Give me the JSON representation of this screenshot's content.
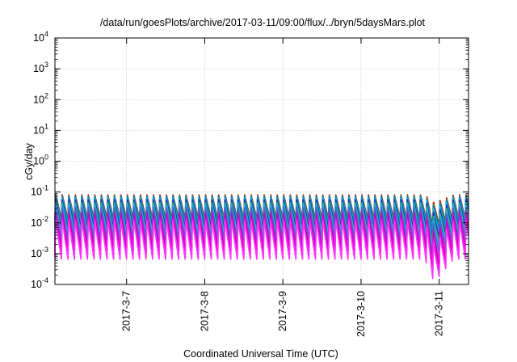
{
  "chart_data": {
    "type": "line",
    "title": "/data/run/goesPlots/archive/2017-03-11/09:00/flux/../bryn/5daysMars.plot",
    "xlabel": "Coordinated Universal Time (UTC)",
    "ylabel": "cGy/day",
    "yscale": "log",
    "ylim": [
      0.0001,
      10000
    ],
    "y_ticks": [
      {
        "value": 0.0001,
        "base": "10",
        "exp": "-4"
      },
      {
        "value": 0.001,
        "base": "10",
        "exp": "-3"
      },
      {
        "value": 0.01,
        "base": "10",
        "exp": "-2"
      },
      {
        "value": 0.1,
        "base": "10",
        "exp": "-1"
      },
      {
        "value": 1,
        "base": "10",
        "exp": "0"
      },
      {
        "value": 10,
        "base": "10",
        "exp": "1"
      },
      {
        "value": 100,
        "base": "10",
        "exp": "2"
      },
      {
        "value": 1000,
        "base": "10",
        "exp": "3"
      },
      {
        "value": 10000,
        "base": "10",
        "exp": "4"
      }
    ],
    "xlim": [
      "2017-03-06T02:00",
      "2017-03-11T09:00"
    ],
    "x_ticks": [
      {
        "value": "2017-03-07T00:00",
        "label": "2017-3-7"
      },
      {
        "value": "2017-03-08T00:00",
        "label": "2017-3-8"
      },
      {
        "value": "2017-03-09T00:00",
        "label": "2017-3-9"
      },
      {
        "value": "2017-03-10T00:00",
        "label": "2017-3-10"
      },
      {
        "value": "2017-03-11T00:00",
        "label": "2017-3-11"
      }
    ],
    "grid": true,
    "legend": "none",
    "pattern": {
      "period_hours": 2.0,
      "dip_time": "2017-03-10T22:30",
      "dip_depth_decades": 0.75
    },
    "series": [
      {
        "color": "#cc0000",
        "peak": 0.085,
        "trough": 0.0135
      },
      {
        "color": "#00aa55",
        "peak": 0.078,
        "trough": 0.0115
      },
      {
        "color": "#0077ff",
        "peak": 0.072,
        "trough": 0.0098
      },
      {
        "color": "#00ccdd",
        "peak": 0.066,
        "trough": 0.0082
      },
      {
        "color": "#2233bb",
        "peak": 0.06,
        "trough": 0.0068
      },
      {
        "color": "#22bb77",
        "peak": 0.048,
        "trough": 0.0046
      },
      {
        "color": "#33aaee",
        "peak": 0.04,
        "trough": 0.0036
      },
      {
        "color": "#4466cc",
        "peak": 0.034,
        "trough": 0.0028
      },
      {
        "color": "#aa22cc",
        "peak": 0.024,
        "trough": 0.0017
      },
      {
        "color": "#cc00aa",
        "peak": 0.019,
        "trough": 0.00118
      },
      {
        "color": "#ee00ee",
        "peak": 0.015,
        "trough": 0.00088
      },
      {
        "color": "#ff33ff",
        "peak": 0.0125,
        "trough": 0.00066
      }
    ]
  }
}
